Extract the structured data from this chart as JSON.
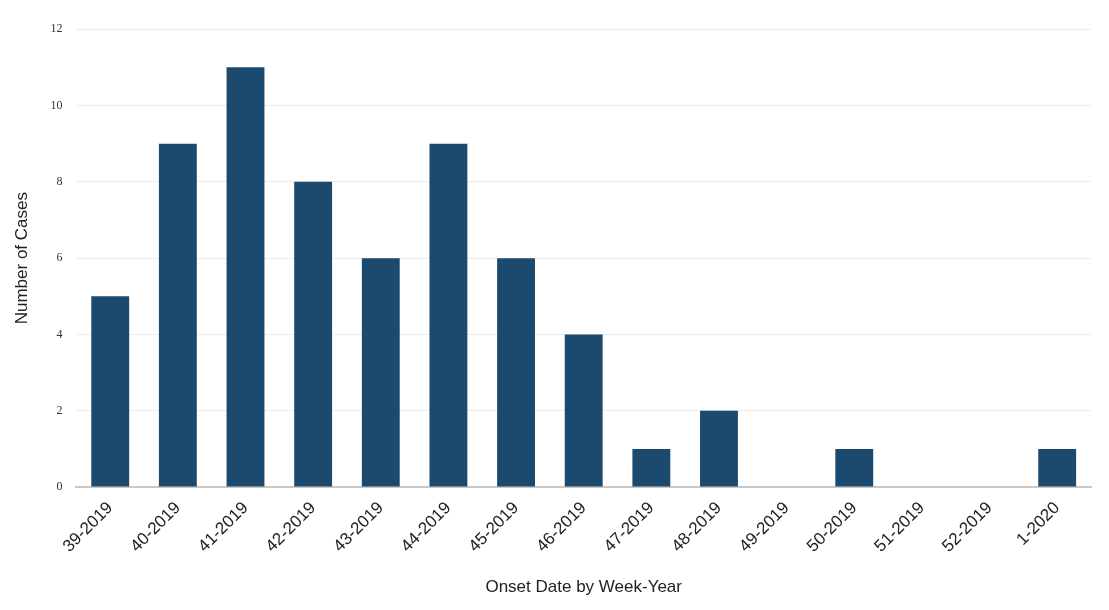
{
  "chart_data": {
    "type": "bar",
    "xlabel": "Onset Date by Week-Year",
    "ylabel": "Number of Cases",
    "categories": [
      "39-2019",
      "40-2019",
      "41-2019",
      "42-2019",
      "43-2019",
      "44-2019",
      "45-2019",
      "46-2019",
      "47-2019",
      "48-2019",
      "49-2019",
      "50-2019",
      "51-2019",
      "52-2019",
      "1-2020"
    ],
    "values": [
      5,
      9,
      11,
      8,
      6,
      9,
      6,
      4,
      1,
      2,
      0,
      1,
      0,
      0,
      1
    ],
    "color": "#1b4a6e",
    "ylim": [
      0,
      12
    ],
    "yticks": [
      0,
      2,
      4,
      6,
      8,
      10,
      12
    ],
    "grid": "y",
    "legend": false
  }
}
